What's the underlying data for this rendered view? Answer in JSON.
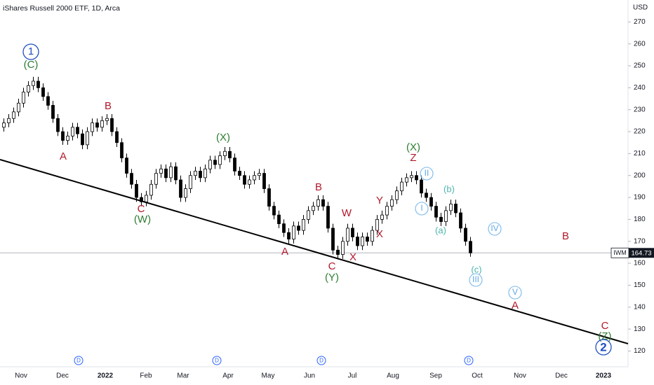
{
  "header": {
    "title": "iShares Russell 2000 ETF, 1D, Arca",
    "currency": "USD",
    "symbol": "IWM"
  },
  "chart_data": {
    "type": "candlestick",
    "categories": [
      null,
      null,
      null,
      null,
      null,
      null,
      null,
      null,
      null,
      null,
      null,
      null,
      null,
      null,
      null,
      null,
      null,
      null,
      null,
      null,
      null,
      null,
      null,
      null,
      null,
      null,
      null,
      null,
      null,
      null,
      null,
      null,
      null,
      null,
      null,
      null,
      null,
      null,
      null,
      null,
      null,
      null,
      null,
      null,
      null,
      null,
      null,
      null,
      null,
      null,
      null,
      null,
      null,
      null,
      null,
      null,
      null,
      null,
      null,
      null,
      null,
      null,
      null,
      null,
      null,
      null,
      null,
      null,
      null,
      null,
      null,
      null,
      null,
      null,
      null,
      null,
      null,
      null,
      null,
      null,
      null,
      null,
      null,
      null,
      null,
      null,
      null,
      null,
      null,
      null,
      null,
      null,
      null,
      null,
      null,
      null
    ],
    "open": [
      222,
      224,
      226,
      229,
      233,
      238,
      241,
      243,
      240,
      236,
      232,
      226,
      220,
      216,
      218,
      222,
      219,
      214,
      220,
      224,
      222,
      225,
      226,
      220,
      215,
      208,
      201,
      196,
      190,
      188,
      191,
      196,
      201,
      203,
      199,
      204,
      198,
      190,
      194,
      200,
      202,
      199,
      203,
      207,
      205,
      209,
      211,
      208,
      202,
      200,
      196,
      198,
      200,
      201,
      194,
      186,
      182,
      178,
      174,
      171,
      177,
      175,
      180,
      184,
      186,
      189,
      186,
      176,
      166,
      164,
      170,
      176,
      172,
      168,
      172,
      170,
      175,
      180,
      182,
      186,
      189,
      193,
      197,
      199,
      200,
      198,
      192,
      190,
      186,
      181,
      179,
      184,
      187,
      183,
      176,
      170
    ],
    "high": [
      226,
      228,
      231,
      235,
      240,
      243,
      245,
      245,
      242,
      238,
      234,
      228,
      222,
      220,
      224,
      224,
      221,
      222,
      226,
      226,
      227,
      228,
      228,
      222,
      217,
      210,
      203,
      198,
      192,
      193,
      198,
      203,
      205,
      205,
      206,
      206,
      200,
      196,
      202,
      204,
      204,
      205,
      209,
      209,
      211,
      213,
      213,
      210,
      204,
      202,
      200,
      202,
      203,
      203,
      196,
      188,
      184,
      180,
      176,
      179,
      179,
      182,
      186,
      188,
      191,
      191,
      188,
      178,
      168,
      172,
      178,
      178,
      174,
      174,
      174,
      177,
      182,
      184,
      188,
      191,
      195,
      199,
      201,
      202,
      202,
      200,
      194,
      192,
      188,
      183,
      186,
      189,
      189,
      185,
      178,
      172
    ],
    "low": [
      220,
      222,
      224,
      227,
      231,
      236,
      239,
      238,
      234,
      230,
      224,
      218,
      214,
      214,
      216,
      217,
      212,
      212,
      218,
      220,
      220,
      223,
      218,
      213,
      206,
      199,
      194,
      188,
      186,
      186,
      189,
      194,
      199,
      197,
      197,
      196,
      188,
      188,
      192,
      198,
      197,
      197,
      201,
      203,
      203,
      207,
      206,
      200,
      198,
      194,
      194,
      196,
      198,
      192,
      184,
      180,
      176,
      172,
      169,
      169,
      173,
      173,
      178,
      182,
      184,
      184,
      174,
      164,
      162,
      162,
      168,
      170,
      166,
      166,
      168,
      168,
      173,
      178,
      180,
      184,
      187,
      191,
      195,
      197,
      196,
      190,
      188,
      184,
      179,
      177,
      177,
      182,
      181,
      174,
      168,
      163
    ],
    "close": [
      224,
      226,
      229,
      233,
      238,
      241,
      243,
      240,
      236,
      232,
      226,
      220,
      216,
      218,
      222,
      219,
      214,
      220,
      224,
      222,
      225,
      226,
      220,
      215,
      208,
      201,
      196,
      190,
      188,
      191,
      196,
      201,
      203,
      199,
      204,
      198,
      190,
      194,
      200,
      202,
      199,
      203,
      207,
      205,
      209,
      211,
      208,
      202,
      200,
      196,
      198,
      200,
      201,
      194,
      186,
      182,
      178,
      174,
      171,
      177,
      175,
      180,
      184,
      186,
      189,
      186,
      176,
      166,
      164,
      170,
      176,
      172,
      168,
      172,
      170,
      175,
      180,
      182,
      186,
      189,
      193,
      197,
      199,
      200,
      198,
      192,
      190,
      186,
      181,
      179,
      184,
      187,
      183,
      176,
      170,
      164.73
    ],
    "up_color": "#ffffff",
    "down_color": "#000000",
    "outline_color": "#000000",
    "ylim": [
      116,
      280
    ],
    "yticks": [
      120,
      130,
      140,
      150,
      160,
      170,
      180,
      190,
      200,
      210,
      220,
      230,
      240,
      250,
      260,
      270
    ],
    "xtick_labels": [
      "Nov",
      "Dec",
      "2022",
      "Feb",
      "Mar",
      "Apr",
      "May",
      "Jun",
      "Jul",
      "Aug",
      "Sep",
      "Oct",
      "Nov",
      "Dec",
      "2023"
    ],
    "dividend_markers": [
      "D",
      "D",
      "D",
      "D"
    ],
    "annotations": [
      "1",
      "(C)",
      "B",
      "A",
      "C",
      "(W)",
      "(X)",
      "A",
      "B",
      "C",
      "(Y)",
      "W",
      "X",
      "Y",
      "X",
      "(X)",
      "Z",
      "II",
      "I",
      "(b)",
      "(a)",
      "IV",
      "(c)",
      "III",
      "V",
      "A",
      "B",
      "C",
      "(Z)",
      "2"
    ]
  }
}
